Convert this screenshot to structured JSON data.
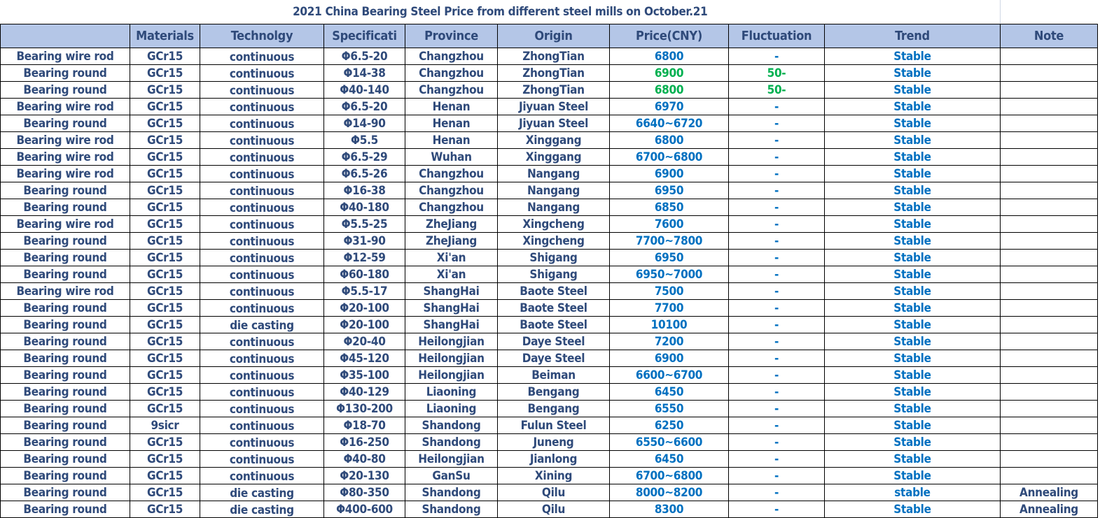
{
  "title": "2021 China Bearing Steel Price from different steel mills on  October.21",
  "headers": [
    "",
    "Materials",
    "Technolgy",
    "Specificati",
    "Province",
    "Origin",
    "Price(CNY)",
    "Fluctuation",
    "Trend",
    "Note"
  ],
  "colors": {
    "header_bg": "#b4c6e7",
    "text": "#2f4a7a",
    "price_blue": "#0070c0",
    "change_green": "#00b050"
  },
  "rows": [
    [
      "Bearing wire rod",
      "GCr15",
      "continuous",
      "Φ6.5-20",
      "Changzhou",
      "ZhongTian",
      "6800",
      "-",
      "Stable",
      ""
    ],
    [
      "Bearing round",
      "GCr15",
      "continuous",
      "Φ14-38",
      "Changzhou",
      "ZhongTian",
      "6900",
      "50-",
      "Stable",
      ""
    ],
    [
      "Bearing round",
      "GCr15",
      "continuous",
      "Φ40-140",
      "Changzhou",
      "ZhongTian",
      "6800",
      "50-",
      "Stable",
      ""
    ],
    [
      "Bearing wire rod",
      "GCr15",
      "continuous",
      "Φ6.5-20",
      "Henan",
      "Jiyuan Steel",
      "6970",
      "-",
      "Stable",
      ""
    ],
    [
      "Bearing round",
      "GCr15",
      "continuous",
      "Φ14-90",
      "Henan",
      "Jiyuan Steel",
      "6640~6720",
      "-",
      "Stable",
      ""
    ],
    [
      "Bearing wire rod",
      "GCr15",
      "continuous",
      "Φ5.5",
      "Henan",
      "Xinggang",
      "6800",
      "-",
      "Stable",
      ""
    ],
    [
      "Bearing wire rod",
      "GCr15",
      "continuous",
      "Φ6.5-29",
      "Wuhan",
      "Xinggang",
      "6700~6800",
      "-",
      "Stable",
      ""
    ],
    [
      "Bearing wire rod",
      "GCr15",
      "continuous",
      "Φ6.5-26",
      "Changzhou",
      "Nangang",
      "6900",
      "-",
      "Stable",
      ""
    ],
    [
      "Bearing round",
      "GCr15",
      "continuous",
      "Φ16-38",
      "Changzhou",
      "Nangang",
      "6950",
      "-",
      "Stable",
      ""
    ],
    [
      "Bearing round",
      "GCr15",
      "continuous",
      "Φ40-180",
      "Changzhou",
      "Nangang",
      "6850",
      "-",
      "Stable",
      ""
    ],
    [
      "Bearing wire rod",
      "GCr15",
      "continuous",
      "Φ5.5-25",
      "ZheJiang",
      "Xingcheng",
      "7600",
      "-",
      "Stable",
      ""
    ],
    [
      "Bearing round",
      "GCr15",
      "continuous",
      "Φ31-90",
      "ZheJiang",
      "Xingcheng",
      "7700~7800",
      "-",
      "Stable",
      ""
    ],
    [
      "Bearing round",
      "GCr15",
      "continuous",
      "Φ12-59",
      "Xi'an",
      "Shigang",
      "6950",
      "-",
      "Stable",
      ""
    ],
    [
      "Bearing round",
      "GCr15",
      "continuous",
      "Φ60-180",
      "Xi'an",
      "Shigang",
      "6950~7000",
      "-",
      "Stable",
      ""
    ],
    [
      "Bearing wire rod",
      "GCr15",
      "continuous",
      "Φ5.5-17",
      "ShangHai",
      "Baote Steel",
      "7500",
      "-",
      "Stable",
      ""
    ],
    [
      "Bearing round",
      "GCr15",
      "continuous",
      "Φ20-100",
      "ShangHai",
      "Baote Steel",
      "7700",
      "-",
      "Stable",
      ""
    ],
    [
      "Bearing round",
      "GCr15",
      "die casting",
      "Φ20-100",
      "ShangHai",
      "Baote Steel",
      "10100",
      "-",
      "Stable",
      ""
    ],
    [
      "Bearing round",
      "GCr15",
      "continuous",
      "Φ20-40",
      "Heilongjian",
      "Daye  Steel",
      "7200",
      "-",
      "Stable",
      ""
    ],
    [
      "Bearing round",
      "GCr15",
      "continuous",
      "Φ45-120",
      "Heilongjian",
      "Daye  Steel",
      "6900",
      "-",
      "Stable",
      ""
    ],
    [
      "Bearing round",
      "GCr15",
      "continuous",
      "Φ35-100",
      "Heilongjian",
      "Beiman",
      "6600~6700",
      "-",
      "Stable",
      ""
    ],
    [
      "Bearing round",
      "GCr15",
      "continuous",
      "Φ40-129",
      "Liaoning",
      "Bengang",
      "6450",
      "-",
      "Stable",
      ""
    ],
    [
      "Bearing round",
      "GCr15",
      "continuous",
      "Φ130-200",
      "Liaoning",
      "Bengang",
      "6550",
      "-",
      "Stable",
      ""
    ],
    [
      "Bearing round",
      "9sicr",
      "continuous",
      "Φ18-70",
      "Shandong",
      "Fulun Steel",
      "6250",
      "-",
      "Stable",
      ""
    ],
    [
      "Bearing round",
      "GCr15",
      "continuous",
      "Φ16-250",
      "Shandong",
      "Juneng",
      "6550~6600",
      "-",
      "Stable",
      ""
    ],
    [
      "Bearing round",
      "GCr15",
      "continuous",
      "Φ40-80",
      "Heilongjian",
      "Jianlong",
      "6450",
      "-",
      "Stable",
      ""
    ],
    [
      "Bearing round",
      "GCr15",
      "continuous",
      "Φ20-130",
      "GanSu",
      "Xining",
      "6700~6800",
      "-",
      "Stable",
      ""
    ],
    [
      "Bearing round",
      "GCr15",
      "die casting",
      "Φ80-350",
      "Shandong",
      "Qilu",
      "8000~8200",
      "-",
      "stable",
      "Annealing"
    ],
    [
      "Bearing round",
      "GCr15",
      "die casting",
      "Φ400-600",
      "Shandong",
      "Qilu",
      "8300",
      "-",
      "Stable",
      "Annealing"
    ]
  ]
}
